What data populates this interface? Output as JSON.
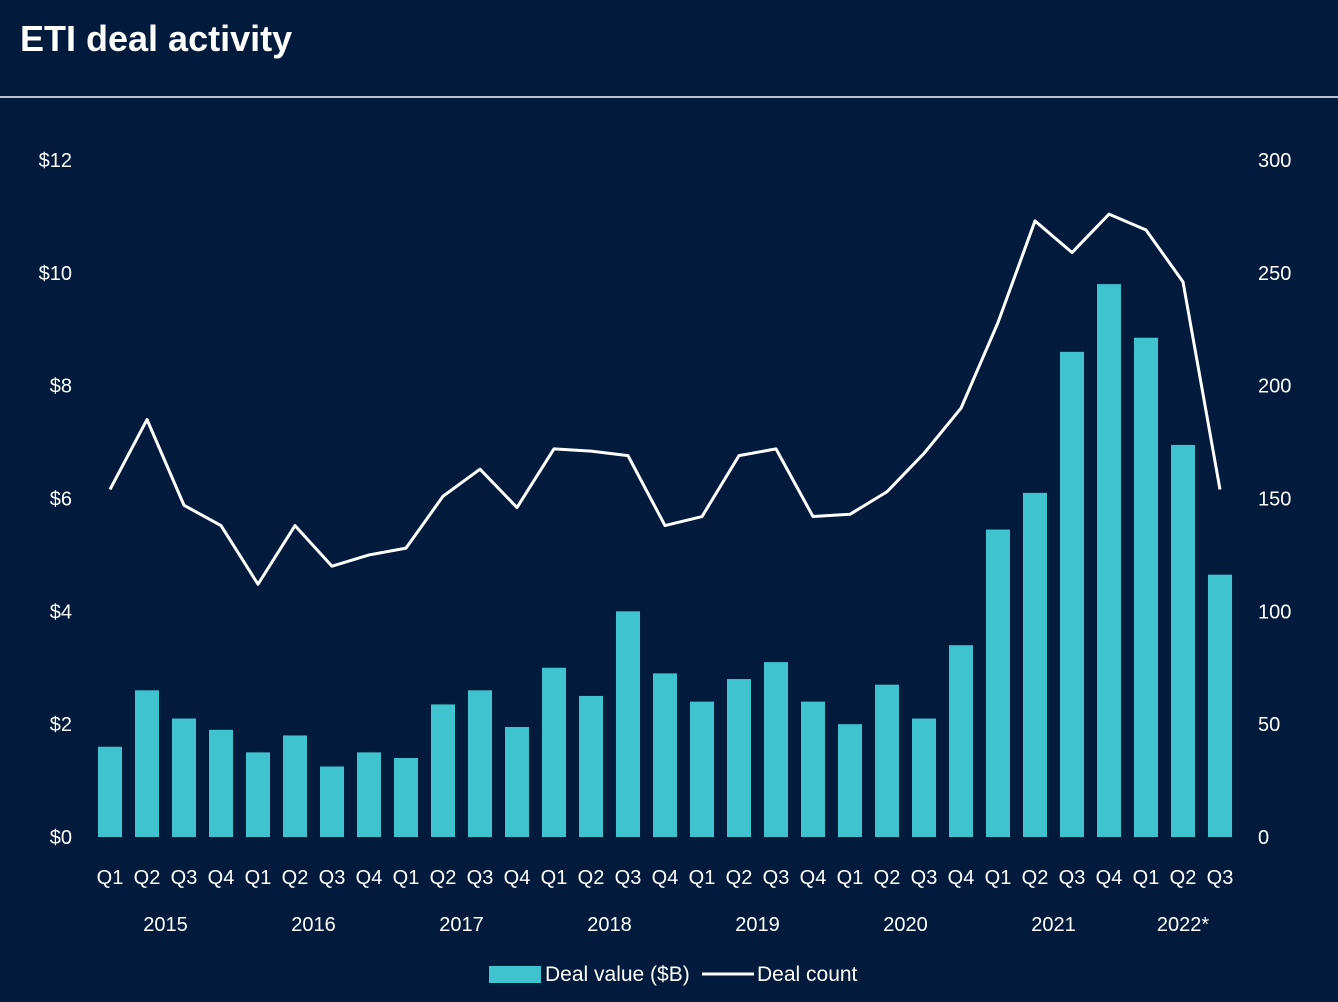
{
  "page": {
    "title": "ETI deal activity"
  },
  "colors": {
    "background": "#021a3c",
    "bar": "#3ec3cf",
    "line": "#ffffff",
    "text": "#ffffff",
    "rule": "#b9c2cf"
  },
  "chart_data": {
    "type": "bar",
    "title": "ETI deal activity",
    "categories": [
      "Q1",
      "Q2",
      "Q3",
      "Q4",
      "Q1",
      "Q2",
      "Q3",
      "Q4",
      "Q1",
      "Q2",
      "Q3",
      "Q4",
      "Q1",
      "Q2",
      "Q3",
      "Q4",
      "Q1",
      "Q2",
      "Q3",
      "Q4",
      "Q1",
      "Q2",
      "Q3",
      "Q4",
      "Q1",
      "Q2",
      "Q3",
      "Q4",
      "Q1",
      "Q2",
      "Q3"
    ],
    "years": [
      {
        "label": "2015",
        "start": 0,
        "end": 3
      },
      {
        "label": "2016",
        "start": 4,
        "end": 7
      },
      {
        "label": "2017",
        "start": 8,
        "end": 11
      },
      {
        "label": "2018",
        "start": 12,
        "end": 15
      },
      {
        "label": "2019",
        "start": 16,
        "end": 19
      },
      {
        "label": "2020",
        "start": 20,
        "end": 23
      },
      {
        "label": "2021",
        "start": 24,
        "end": 27
      },
      {
        "label": "2022*",
        "start": 28,
        "end": 30
      }
    ],
    "series": [
      {
        "name": "Deal value ($B)",
        "type": "bar",
        "axis": "left",
        "values": [
          1.6,
          2.6,
          2.1,
          1.9,
          1.5,
          1.8,
          1.25,
          1.5,
          1.4,
          2.35,
          2.6,
          1.95,
          3.0,
          2.5,
          4.0,
          2.9,
          2.4,
          2.8,
          3.1,
          2.4,
          2.0,
          2.7,
          2.1,
          3.4,
          5.45,
          6.1,
          8.6,
          9.8,
          8.85,
          6.95,
          4.65
        ]
      },
      {
        "name": "Deal count",
        "type": "line",
        "axis": "right",
        "values": [
          154,
          185,
          147,
          138,
          112,
          138,
          120,
          125,
          128,
          151,
          163,
          146,
          172,
          171,
          169,
          138,
          142,
          169,
          172,
          142,
          143,
          153,
          170,
          190,
          228,
          273,
          259,
          276,
          269,
          246,
          154
        ]
      }
    ],
    "y_left": {
      "min": 0,
      "max": 12,
      "ticks": [
        "$0",
        "$2",
        "$4",
        "$6",
        "$8",
        "$10",
        "$12"
      ]
    },
    "y_right": {
      "min": 0,
      "max": 300,
      "ticks": [
        "0",
        "50",
        "100",
        "150",
        "200",
        "250",
        "300"
      ]
    },
    "grid": false,
    "legend": {
      "position": "bottom",
      "entries": [
        "Deal value ($B)",
        "Deal count"
      ]
    }
  }
}
